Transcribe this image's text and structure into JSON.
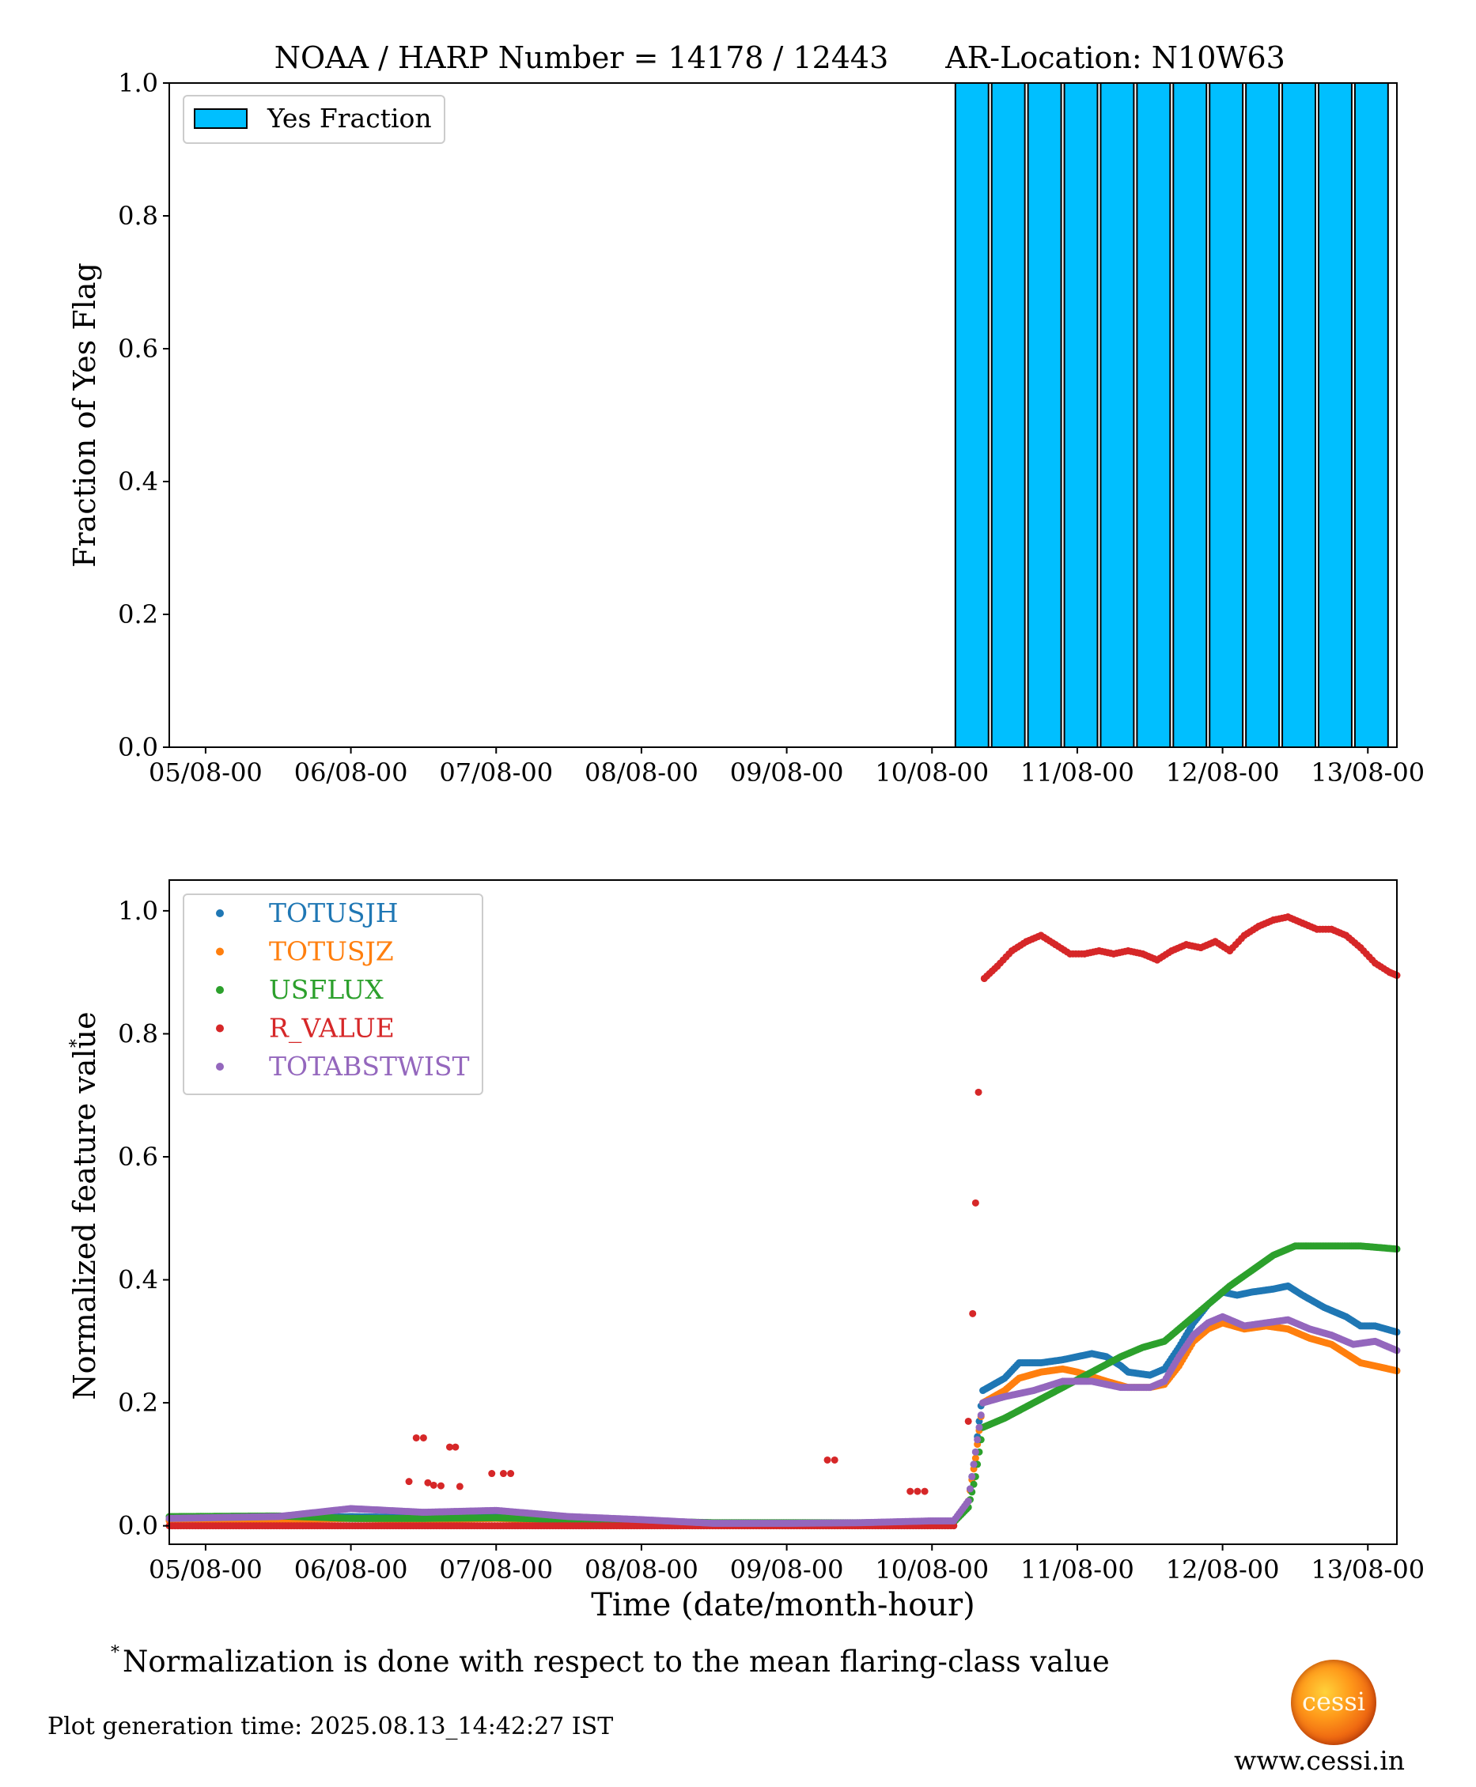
{
  "header": {
    "title": "NOAA / HARP Number = 14178 / 12443",
    "location": "AR-Location: N10W63"
  },
  "chart_data": [
    {
      "type": "bar",
      "ylabel": "Fraction of Yes Flag",
      "xlabel": "",
      "ylim": [
        0,
        1.0
      ],
      "yticks": [
        "0.0",
        "0.2",
        "0.4",
        "0.6",
        "0.8",
        "1.0"
      ],
      "xticks": [
        "05/08-00",
        "06/08-00",
        "07/08-00",
        "08/08-00",
        "09/08-00",
        "10/08-00",
        "11/08-00",
        "12/08-00",
        "13/08-00"
      ],
      "xrange_days": [
        4.75,
        13.2
      ],
      "legend_position": "top-left",
      "bar_color": "#00bfff",
      "series": [
        {
          "name": "Yes Fraction",
          "bins_start_day": [
            10.15,
            10.4,
            10.65,
            10.9,
            11.15,
            11.4,
            11.65,
            11.9,
            12.15,
            12.4,
            12.65,
            12.9
          ],
          "bin_width_days": 0.25,
          "values": [
            1,
            1,
            1,
            1,
            1,
            1,
            1,
            1,
            1,
            1,
            1,
            1
          ]
        }
      ]
    },
    {
      "type": "scatter",
      "xlabel": "Time (date/month-hour)",
      "ylabel": "Normalized feature value",
      "ylabel_sup": "*",
      "ylim": [
        -0.03,
        1.05
      ],
      "yticks": [
        "0.0",
        "0.2",
        "0.4",
        "0.6",
        "0.8",
        "1.0"
      ],
      "xticks": [
        "05/08-00",
        "06/08-00",
        "07/08-00",
        "08/08-00",
        "09/08-00",
        "10/08-00",
        "11/08-00",
        "12/08-00",
        "13/08-00"
      ],
      "xrange_days": [
        4.75,
        13.2
      ],
      "legend_position": "top-left",
      "series": [
        {
          "name": "TOTUSJH",
          "color": "#1f77b4",
          "points": [
            [
              4.75,
              0.01
            ],
            [
              5.5,
              0.012
            ],
            [
              6.0,
              0.015
            ],
            [
              6.5,
              0.013
            ],
            [
              7.0,
              0.015
            ],
            [
              7.5,
              0.01
            ],
            [
              8.0,
              0.008
            ],
            [
              8.5,
              0.004
            ],
            [
              9.0,
              0.004
            ],
            [
              9.5,
              0.004
            ],
            [
              10.0,
              0.006
            ],
            [
              10.15,
              0.006
            ],
            [
              10.25,
              0.04
            ],
            [
              10.3,
              0.12
            ],
            [
              10.35,
              0.22
            ],
            [
              10.5,
              0.24
            ],
            [
              10.6,
              0.265
            ],
            [
              10.75,
              0.265
            ],
            [
              10.9,
              0.27
            ],
            [
              11.0,
              0.275
            ],
            [
              11.1,
              0.28
            ],
            [
              11.2,
              0.275
            ],
            [
              11.3,
              0.26
            ],
            [
              11.35,
              0.25
            ],
            [
              11.5,
              0.245
            ],
            [
              11.6,
              0.255
            ],
            [
              11.7,
              0.29
            ],
            [
              11.8,
              0.33
            ],
            [
              11.9,
              0.36
            ],
            [
              12.0,
              0.38
            ],
            [
              12.1,
              0.375
            ],
            [
              12.2,
              0.38
            ],
            [
              12.35,
              0.385
            ],
            [
              12.45,
              0.39
            ],
            [
              12.55,
              0.375
            ],
            [
              12.7,
              0.355
            ],
            [
              12.85,
              0.34
            ],
            [
              12.95,
              0.325
            ],
            [
              13.05,
              0.325
            ],
            [
              13.2,
              0.315
            ]
          ]
        },
        {
          "name": "TOTUSJZ",
          "color": "#ff7f0e",
          "points": [
            [
              4.75,
              0.008
            ],
            [
              5.5,
              0.01
            ],
            [
              6.0,
              0.012
            ],
            [
              6.5,
              0.01
            ],
            [
              7.0,
              0.012
            ],
            [
              7.5,
              0.008
            ],
            [
              8.0,
              0.006
            ],
            [
              8.5,
              0.004
            ],
            [
              9.0,
              0.004
            ],
            [
              9.5,
              0.004
            ],
            [
              10.0,
              0.005
            ],
            [
              10.15,
              0.005
            ],
            [
              10.25,
              0.04
            ],
            [
              10.3,
              0.11
            ],
            [
              10.35,
              0.2
            ],
            [
              10.5,
              0.22
            ],
            [
              10.6,
              0.24
            ],
            [
              10.75,
              0.25
            ],
            [
              10.9,
              0.255
            ],
            [
              11.0,
              0.25
            ],
            [
              11.2,
              0.235
            ],
            [
              11.35,
              0.225
            ],
            [
              11.5,
              0.225
            ],
            [
              11.6,
              0.23
            ],
            [
              11.7,
              0.26
            ],
            [
              11.8,
              0.3
            ],
            [
              11.9,
              0.32
            ],
            [
              12.0,
              0.33
            ],
            [
              12.15,
              0.32
            ],
            [
              12.3,
              0.325
            ],
            [
              12.45,
              0.32
            ],
            [
              12.6,
              0.305
            ],
            [
              12.75,
              0.295
            ],
            [
              12.85,
              0.28
            ],
            [
              12.95,
              0.265
            ],
            [
              13.05,
              0.26
            ],
            [
              13.2,
              0.252
            ]
          ]
        },
        {
          "name": "USFLUX",
          "color": "#2ca02c",
          "points": [
            [
              4.75,
              0.015
            ],
            [
              5.5,
              0.016
            ],
            [
              6.0,
              0.012
            ],
            [
              6.5,
              0.012
            ],
            [
              7.0,
              0.013
            ],
            [
              7.5,
              0.01
            ],
            [
              8.0,
              0.008
            ],
            [
              8.5,
              0.005
            ],
            [
              9.0,
              0.005
            ],
            [
              9.5,
              0.005
            ],
            [
              10.0,
              0.006
            ],
            [
              10.15,
              0.006
            ],
            [
              10.25,
              0.03
            ],
            [
              10.3,
              0.08
            ],
            [
              10.35,
              0.16
            ],
            [
              10.5,
              0.175
            ],
            [
              10.7,
              0.2
            ],
            [
              10.9,
              0.225
            ],
            [
              11.1,
              0.25
            ],
            [
              11.3,
              0.275
            ],
            [
              11.45,
              0.29
            ],
            [
              11.6,
              0.3
            ],
            [
              11.75,
              0.33
            ],
            [
              11.9,
              0.36
            ],
            [
              12.05,
              0.39
            ],
            [
              12.2,
              0.415
            ],
            [
              12.35,
              0.44
            ],
            [
              12.5,
              0.455
            ],
            [
              12.65,
              0.455
            ],
            [
              12.8,
              0.455
            ],
            [
              12.95,
              0.455
            ],
            [
              13.1,
              0.452
            ],
            [
              13.2,
              0.45
            ]
          ]
        },
        {
          "name": "R_VALUE",
          "color": "#d62728",
          "points": [
            [
              4.75,
              0.0
            ],
            [
              5.0,
              0.0
            ],
            [
              5.3,
              0.0
            ],
            [
              5.6,
              0.0
            ],
            [
              5.9,
              0.0
            ],
            [
              6.2,
              0.0
            ],
            [
              6.5,
              0.0
            ],
            [
              6.9,
              0.0
            ],
            [
              7.3,
              0.0
            ],
            [
              7.6,
              0.0
            ],
            [
              8.0,
              0.0
            ],
            [
              8.4,
              0.0
            ],
            [
              8.8,
              0.0
            ],
            [
              9.2,
              0.0
            ],
            [
              9.6,
              0.0
            ],
            [
              10.0,
              0.0
            ],
            [
              10.15,
              0.0
            ],
            [
              6.4,
              0.072
            ],
            [
              6.45,
              0.143
            ],
            [
              6.5,
              0.143
            ],
            [
              6.53,
              0.07
            ],
            [
              6.57,
              0.066
            ],
            [
              6.62,
              0.065
            ],
            [
              6.68,
              0.128
            ],
            [
              6.72,
              0.128
            ],
            [
              6.75,
              0.064
            ],
            [
              6.97,
              0.085
            ],
            [
              7.05,
              0.085
            ],
            [
              7.1,
              0.085
            ],
            [
              9.28,
              0.107
            ],
            [
              9.33,
              0.107
            ],
            [
              9.85,
              0.056
            ],
            [
              9.9,
              0.056
            ],
            [
              9.95,
              0.056
            ],
            [
              10.25,
              0.17
            ],
            [
              10.28,
              0.345
            ],
            [
              10.3,
              0.525
            ],
            [
              10.32,
              0.705
            ],
            [
              10.36,
              0.89
            ],
            [
              10.45,
              0.91
            ],
            [
              10.55,
              0.935
            ],
            [
              10.65,
              0.95
            ],
            [
              10.75,
              0.96
            ],
            [
              10.85,
              0.945
            ],
            [
              10.95,
              0.93
            ],
            [
              11.05,
              0.93
            ],
            [
              11.15,
              0.935
            ],
            [
              11.25,
              0.93
            ],
            [
              11.35,
              0.935
            ],
            [
              11.45,
              0.93
            ],
            [
              11.55,
              0.92
            ],
            [
              11.65,
              0.935
            ],
            [
              11.75,
              0.945
            ],
            [
              11.85,
              0.94
            ],
            [
              11.95,
              0.95
            ],
            [
              12.05,
              0.935
            ],
            [
              12.15,
              0.96
            ],
            [
              12.25,
              0.975
            ],
            [
              12.35,
              0.985
            ],
            [
              12.45,
              0.99
            ],
            [
              12.55,
              0.98
            ],
            [
              12.65,
              0.97
            ],
            [
              12.75,
              0.97
            ],
            [
              12.85,
              0.96
            ],
            [
              12.95,
              0.94
            ],
            [
              13.05,
              0.915
            ],
            [
              13.15,
              0.9
            ],
            [
              13.2,
              0.895
            ]
          ]
        },
        {
          "name": "TOTABSTWIST",
          "color": "#9467bd",
          "points": [
            [
              4.75,
              0.012
            ],
            [
              5.5,
              0.015
            ],
            [
              6.0,
              0.028
            ],
            [
              6.5,
              0.022
            ],
            [
              7.0,
              0.025
            ],
            [
              7.5,
              0.015
            ],
            [
              8.0,
              0.01
            ],
            [
              8.5,
              0.004
            ],
            [
              9.0,
              0.004
            ],
            [
              9.5,
              0.005
            ],
            [
              10.0,
              0.008
            ],
            [
              10.15,
              0.008
            ],
            [
              10.25,
              0.04
            ],
            [
              10.3,
              0.12
            ],
            [
              10.35,
              0.2
            ],
            [
              10.5,
              0.21
            ],
            [
              10.7,
              0.22
            ],
            [
              10.9,
              0.235
            ],
            [
              11.1,
              0.235
            ],
            [
              11.3,
              0.225
            ],
            [
              11.5,
              0.225
            ],
            [
              11.6,
              0.235
            ],
            [
              11.7,
              0.275
            ],
            [
              11.8,
              0.31
            ],
            [
              11.9,
              0.33
            ],
            [
              12.0,
              0.34
            ],
            [
              12.15,
              0.325
            ],
            [
              12.3,
              0.33
            ],
            [
              12.45,
              0.335
            ],
            [
              12.6,
              0.32
            ],
            [
              12.75,
              0.31
            ],
            [
              12.9,
              0.295
            ],
            [
              13.05,
              0.3
            ],
            [
              13.2,
              0.285
            ]
          ]
        }
      ]
    }
  ],
  "footnote": {
    "marker": "*",
    "text": "Normalization is done with respect to the mean flaring-class value"
  },
  "generation_time": "Plot generation time: 2025.08.13_14:42:27 IST",
  "logo": {
    "label": "cessi"
  },
  "website": "www.cessi.in"
}
